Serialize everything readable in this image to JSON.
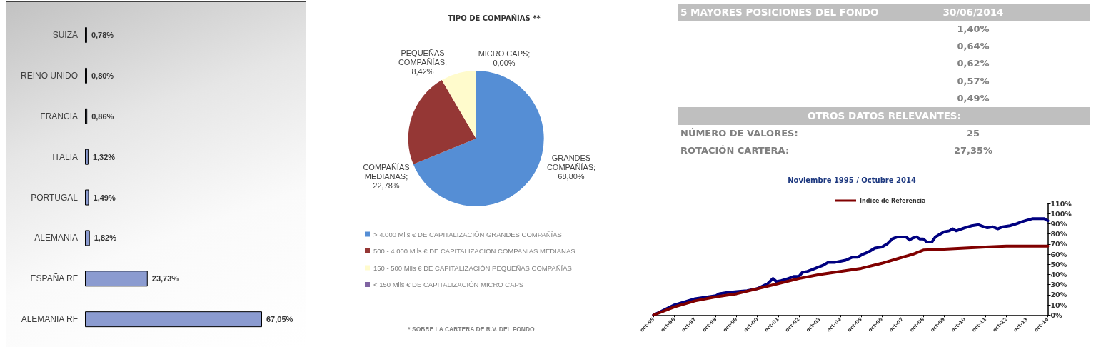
{
  "chart_data": [
    {
      "type": "bar",
      "orientation": "horizontal",
      "categories": [
        "SUIZA",
        "REINO UNIDO",
        "FRANCIA",
        "ITALIA",
        "PORTUGAL",
        "ALEMANIA",
        "ESPAÑA RF",
        "ALEMANIA RF"
      ],
      "values": [
        0.78,
        0.8,
        0.86,
        1.32,
        1.49,
        1.82,
        23.73,
        67.05
      ],
      "color": "#8b9bd0",
      "value_labels": [
        "0,78%",
        "0,80%",
        "0,86%",
        "1,32%",
        "1,49%",
        "1,82%",
        "23,73%",
        "67,05%"
      ],
      "tick_labels": "y"
    },
    {
      "type": "pie",
      "title": "TIPO DE COMPAÑÍAS **",
      "categories": [
        "> 4.000 Mlls € DE CAPITALIZACIÓN GRANDES COMPAÑÍAS",
        "500 - 4.000 Mlls € DE CAPITALIZACIÓN COMPAÑÍAS MEDIANAS",
        "150 - 500 Mlls € DE CAPITALIZACIÓN PEQUEÑAS COMPAÑÍAS",
        "< 150 Mlls € DE CAPITALIZACIÓN MICRO CAPS"
      ],
      "values": [
        68.8,
        22.78,
        8.42,
        0.0
      ],
      "colors": [
        "#558ed5",
        "#953735",
        "#fffbcc",
        "#8064a2"
      ],
      "value_labels": [
        "GRANDES COMPAÑÍAS; 68,80%",
        "COMPAÑÍAS MEDIANAS; 22,78%",
        "PEQUEÑAS COMPAÑÍAS; 8,42%",
        "MICRO CAPS; 0,00%"
      ],
      "legend": "bottom",
      "annotations": [
        "* SOBRE LA CARTERA DE R.V. DEL FONDO"
      ]
    },
    {
      "type": "other",
      "title": "5 MAYORES POSICIONES DEL FONDO",
      "subtitle": "30/06/2014",
      "categories": [
        null,
        null,
        null,
        null,
        null
      ],
      "value_labels": [
        "1,40%",
        "0,64%",
        "0,62%",
        "0,57%",
        "0,49%"
      ]
    },
    {
      "type": "other",
      "title": "OTROS DATOS RELEVANTES:",
      "annotations": [
        "NÚMERO DE VALORES: 25",
        "ROTACIÓN CARTERA: 27,35%"
      ]
    },
    {
      "type": "line",
      "title": "Noviembre 1995 / Octubre 2014",
      "series": [
        {
          "color": "#000080",
          "x": [
            "1995-10",
            "1996-10",
            "1997-10",
            "1998-10",
            "1998-12",
            "1999-04",
            "1999-10",
            "2000-04",
            "2000-10",
            "2001-04",
            "2001-07",
            "2001-09",
            "2001-12",
            "2002-04",
            "2002-07",
            "2002-10",
            "2002-12",
            "2003-03",
            "2003-06",
            "2003-09",
            "2003-12",
            "2004-03",
            "2004-07",
            "2004-10",
            "2005-01",
            "2005-05",
            "2005-08",
            "2005-11",
            "2006-02",
            "2006-06",
            "2006-10",
            "2007-01",
            "2007-04",
            "2007-07",
            "2007-10",
            "2007-12",
            "2008-02",
            "2008-04",
            "2008-06",
            "2008-08",
            "2008-10",
            "2008-12",
            "2009-03",
            "2009-05",
            "2009-07",
            "2009-10",
            "2010-01",
            "2010-03",
            "2010-05",
            "2010-10",
            "2011-02",
            "2011-06",
            "2011-09",
            "2011-11",
            "2012-02",
            "2012-05",
            "2012-08",
            "2012-12",
            "2013-04",
            "2013-07",
            "2013-09",
            "2014-01",
            "2014-05",
            "2014-08",
            "2014-10"
          ],
          "values": [
            0,
            10,
            16,
            19,
            21,
            22,
            23,
            24,
            26,
            31,
            36,
            33,
            34,
            36,
            38,
            38,
            42,
            43,
            45,
            47,
            49,
            52,
            52,
            53,
            54,
            57,
            57,
            60,
            62,
            66,
            67,
            70,
            75,
            77,
            77,
            77,
            74,
            76,
            77,
            75,
            75,
            72,
            72,
            77,
            79,
            82,
            83,
            85,
            83,
            86,
            88,
            89,
            87,
            86,
            87,
            85,
            87,
            88,
            90,
            92,
            93,
            95,
            95,
            95,
            93
          ]
        },
        {
          "name": "Indice de Referencia",
          "color": "#800000",
          "x": [
            "1995-10",
            "1996-10",
            "1997-10",
            "1998-10",
            "1999-10",
            "2000-10",
            "2001-10",
            "2002-10",
            "2003-10",
            "2004-10",
            "2005-10",
            "2006-10",
            "2007-10",
            "2008-04",
            "2008-10",
            "2009-10",
            "2010-10",
            "2011-10",
            "2012-10",
            "2013-10",
            "2014-10"
          ],
          "values": [
            0,
            8,
            14,
            18,
            21,
            26,
            31,
            36,
            40,
            43,
            46,
            51,
            57,
            60,
            64,
            65,
            66,
            67,
            68,
            68,
            68
          ]
        }
      ],
      "xlim": [
        "1995-10",
        "2014-10"
      ],
      "xticks": [
        {
          "value": "1995-10",
          "label": "oct-95"
        },
        {
          "value": "1996-10",
          "label": "oct-96"
        },
        {
          "value": "1997-10",
          "label": "oct-97"
        },
        {
          "value": "1998-10",
          "label": "oct-98"
        },
        {
          "value": "1999-10",
          "label": "oct-99"
        },
        {
          "value": "2000-10",
          "label": "oct-00"
        },
        {
          "value": "2001-10",
          "label": "oct-01"
        },
        {
          "value": "2002-10",
          "label": "oct-02"
        },
        {
          "value": "2003-10",
          "label": "oct-03"
        },
        {
          "value": "2004-10",
          "label": "oct-04"
        },
        {
          "value": "2005-10",
          "label": "oct-05"
        },
        {
          "value": "2006-10",
          "label": "oct-06"
        },
        {
          "value": "2007-10",
          "label": "oct-07"
        },
        {
          "value": "2008-10",
          "label": "oct-08"
        },
        {
          "value": "2009-10",
          "label": "oct-09"
        },
        {
          "value": "2010-10",
          "label": "oct-10"
        },
        {
          "value": "2011-10",
          "label": "oct-11"
        },
        {
          "value": "2012-10",
          "label": "oct-12"
        },
        {
          "value": "2013-10",
          "label": "oct-13"
        },
        {
          "value": "2014-10",
          "label": "oct-14"
        }
      ],
      "ylim": [
        0,
        110
      ],
      "yticks": [
        {
          "value": 0,
          "label": "0%"
        },
        {
          "value": 10,
          "label": "10%"
        },
        {
          "value": 20,
          "label": "20%"
        },
        {
          "value": 30,
          "label": "30%"
        },
        {
          "value": 40,
          "label": "40%"
        },
        {
          "value": 50,
          "label": "50%"
        },
        {
          "value": 60,
          "label": "60%"
        },
        {
          "value": 70,
          "label": "70%"
        },
        {
          "value": 80,
          "label": "80%"
        },
        {
          "value": 90,
          "label": "90%"
        },
        {
          "value": 100,
          "label": "100%"
        },
        {
          "value": 110,
          "label": "110%"
        }
      ],
      "legend": "top",
      "marker": "none",
      "line_style": "solid"
    }
  ]
}
